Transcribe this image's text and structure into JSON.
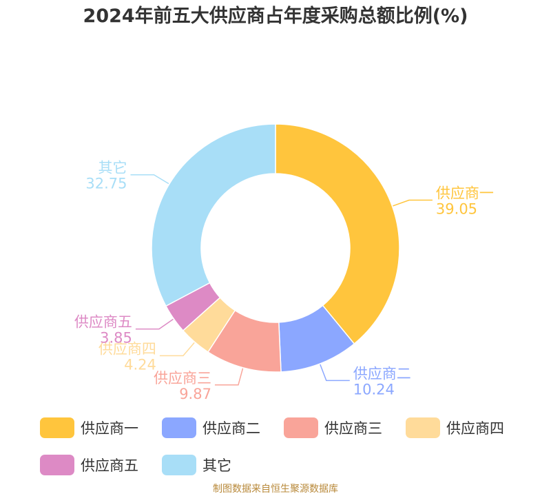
{
  "title": "2024年前五大供应商占年度采购总额比例(%)",
  "source": "制图数据来自恒生聚源数据库",
  "chart_data": {
    "type": "pie",
    "title": "2024年前五大供应商占年度采购总额比例(%)",
    "legend_position": "bottom",
    "series": [
      {
        "name": "供应商一",
        "value": 39.05,
        "label": "39.05",
        "color": "#FFC53D"
      },
      {
        "name": "供应商二",
        "value": 10.24,
        "label": "10.24",
        "color": "#8BA7FF"
      },
      {
        "name": "供应商三",
        "value": 9.87,
        "label": "9.87",
        "color": "#F9A499"
      },
      {
        "name": "供应商四",
        "value": 4.24,
        "label": "4.24",
        "color": "#FFDB9A"
      },
      {
        "name": "供应商五",
        "value": 3.85,
        "label": "3.85",
        "color": "#DD8AC5"
      },
      {
        "name": "其它",
        "value": 32.75,
        "label": "32.75",
        "color": "#A8DEF7"
      }
    ]
  }
}
